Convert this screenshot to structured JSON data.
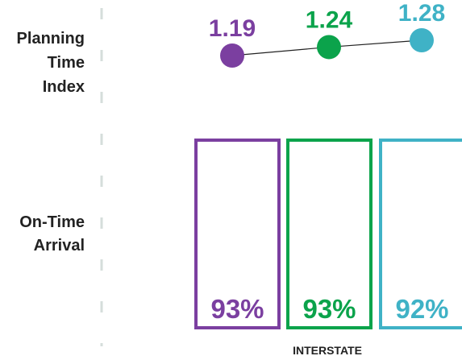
{
  "chart_data": {
    "type": "line",
    "rows": {
      "planning_time_index": {
        "label_lines": [
          "Planning",
          "Time",
          "Index"
        ]
      },
      "on_time_arrival": {
        "label_lines": [
          "On-Time",
          "Arrival"
        ]
      }
    },
    "category_label": "INTERSTATE",
    "planning_time_index": {
      "values": [
        1.19,
        1.24,
        1.28
      ],
      "labels": [
        "1.19",
        "1.24",
        "1.28"
      ],
      "ylim": [
        1.15,
        1.3
      ]
    },
    "on_time_arrival": {
      "values": [
        93,
        93,
        92
      ],
      "labels": [
        "93%",
        "93%",
        "92%"
      ],
      "unit": "%"
    },
    "series_colors": [
      "#7B3FA0",
      "#0BA34B",
      "#3FB2C6"
    ],
    "separator_color": "#D5DEDB",
    "grid": false
  }
}
